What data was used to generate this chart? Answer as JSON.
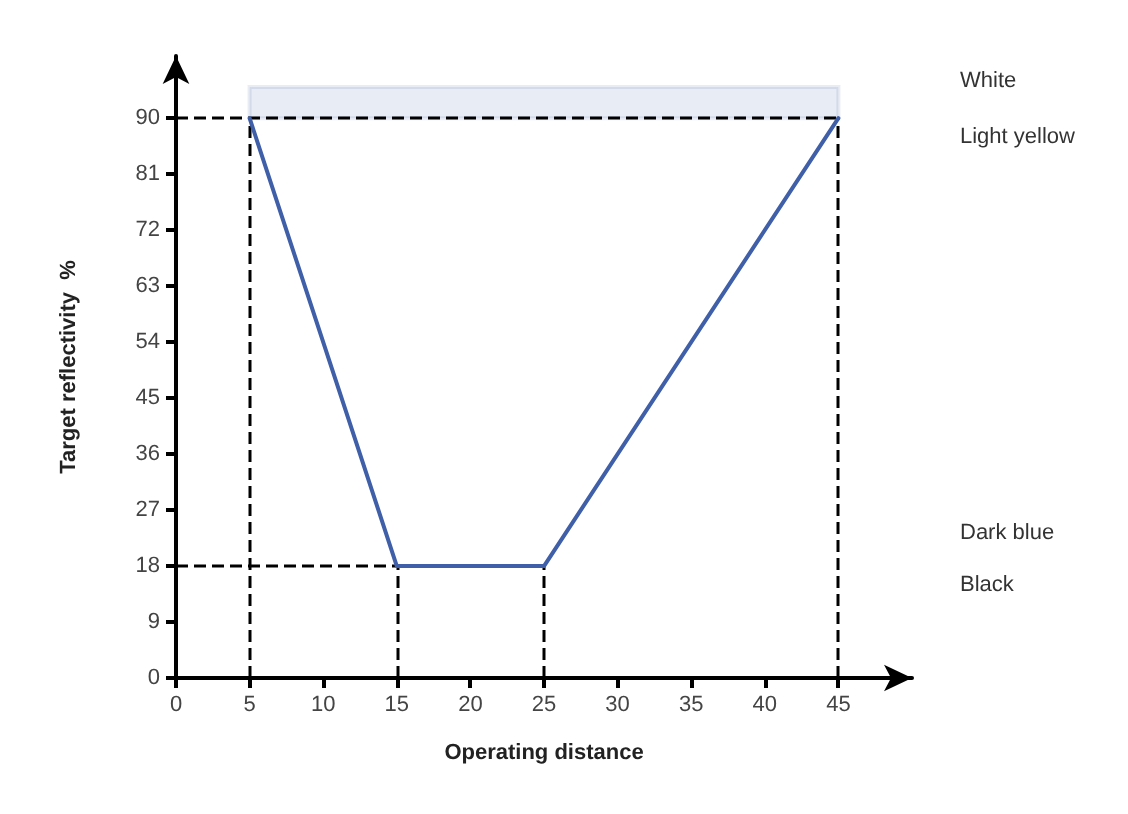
{
  "chart_data": {
    "type": "line",
    "xlabel": "Operating distance",
    "ylabel": "Target reflectivity  %",
    "xlim": [
      0,
      50
    ],
    "ylim": [
      0,
      100
    ],
    "xticks": [
      0,
      5,
      10,
      15,
      20,
      25,
      30,
      35,
      40,
      45
    ],
    "yticks": [
      0,
      9,
      18,
      27,
      36,
      45,
      54,
      63,
      72,
      81,
      90
    ],
    "marker": "none",
    "series": [
      {
        "color": "#3f5fa8",
        "x": [
          5,
          15,
          25,
          45
        ],
        "values": [
          90,
          18,
          18,
          90
        ]
      }
    ],
    "bands": [
      {
        "axis": "y",
        "from": 90,
        "to": 95,
        "color": "#3f5fa8"
      }
    ],
    "ref_lines": [
      {
        "axis": "y",
        "value": 90,
        "color": "#000000",
        "line_style": "dashed"
      },
      {
        "axis": "y",
        "value": 18,
        "color": "#000000",
        "line_style": "dashed"
      },
      {
        "axis": "x",
        "value": 5,
        "color": "#000000",
        "line_style": "dashed"
      },
      {
        "axis": "x",
        "value": 15,
        "color": "#000000",
        "line_style": "dashed"
      },
      {
        "axis": "x",
        "value": 25,
        "color": "#000000",
        "line_style": "dashed"
      },
      {
        "axis": "x",
        "value": 45,
        "color": "#000000",
        "line_style": "dashed"
      }
    ],
    "annotations": [
      "White",
      "Light yellow",
      "Dark blue",
      "Black"
    ]
  }
}
